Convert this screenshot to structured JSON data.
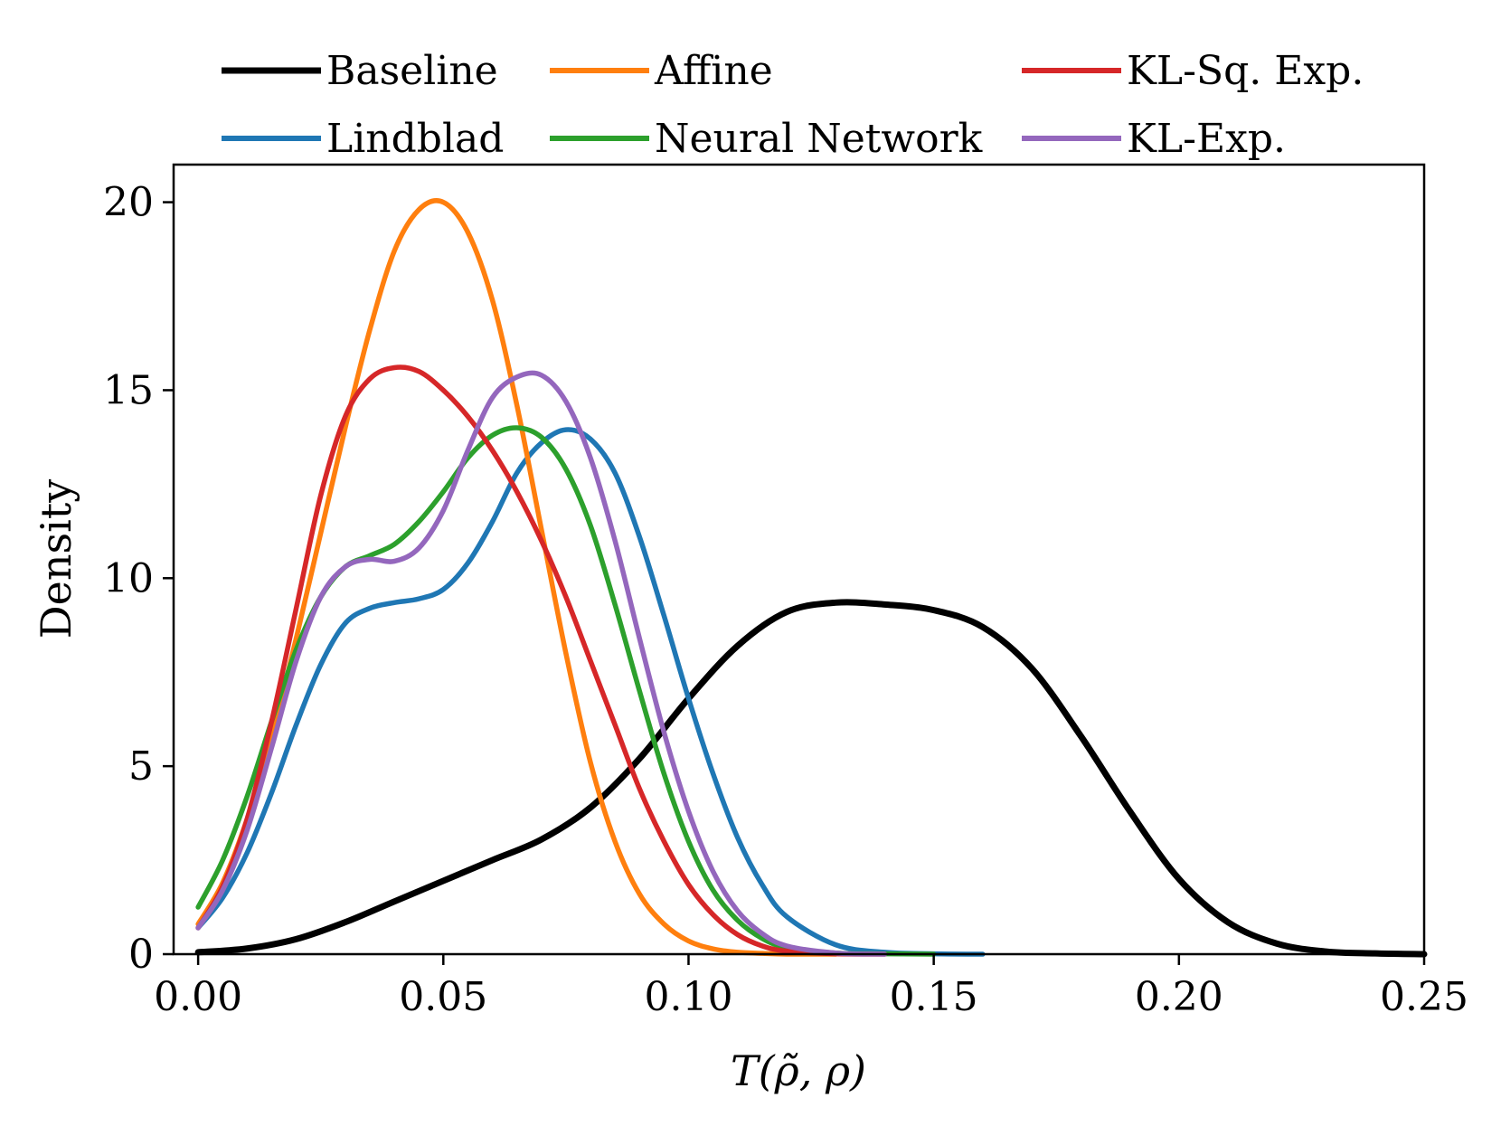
{
  "chart_data": {
    "type": "line",
    "title": "",
    "xlabel": "T(ρ̃, ρ)",
    "ylabel": "Density",
    "xlim": [
      -0.005,
      0.25
    ],
    "ylim": [
      0,
      21
    ],
    "xticks": [
      0.0,
      0.05,
      0.1,
      0.15,
      0.2,
      0.25
    ],
    "xtick_labels": [
      "0.00",
      "0.05",
      "0.10",
      "0.15",
      "0.20",
      "0.25"
    ],
    "yticks": [
      0,
      5,
      10,
      15,
      20
    ],
    "ytick_labels": [
      "0",
      "5",
      "10",
      "15",
      "20"
    ],
    "grid": false,
    "legend_position": "top (above plot, 3 columns)",
    "series": [
      {
        "name": "Baseline",
        "color": "#000000",
        "x": [
          0.0,
          0.01,
          0.02,
          0.03,
          0.04,
          0.05,
          0.06,
          0.07,
          0.08,
          0.09,
          0.1,
          0.11,
          0.12,
          0.13,
          0.14,
          0.15,
          0.16,
          0.17,
          0.18,
          0.19,
          0.2,
          0.21,
          0.22,
          0.23,
          0.24,
          0.25
        ],
        "y": [
          0.05,
          0.15,
          0.4,
          0.85,
          1.4,
          1.95,
          2.5,
          3.05,
          3.9,
          5.2,
          6.8,
          8.2,
          9.1,
          9.35,
          9.3,
          9.15,
          8.7,
          7.6,
          5.8,
          3.8,
          2.0,
          0.85,
          0.28,
          0.07,
          0.02,
          0.0
        ]
      },
      {
        "name": "Lindblad",
        "color": "#1f77b4",
        "x": [
          0.0,
          0.005,
          0.01,
          0.015,
          0.02,
          0.025,
          0.03,
          0.035,
          0.04,
          0.045,
          0.05,
          0.055,
          0.06,
          0.065,
          0.07,
          0.075,
          0.08,
          0.085,
          0.09,
          0.095,
          0.1,
          0.105,
          0.11,
          0.115,
          0.12,
          0.13,
          0.14,
          0.15,
          0.16
        ],
        "y": [
          0.7,
          1.5,
          2.7,
          4.3,
          6.1,
          7.7,
          8.8,
          9.2,
          9.35,
          9.45,
          9.7,
          10.4,
          11.5,
          12.8,
          13.6,
          13.95,
          13.7,
          12.8,
          11.1,
          9.0,
          6.8,
          4.8,
          3.1,
          1.85,
          1.0,
          0.25,
          0.05,
          0.01,
          0.0
        ]
      },
      {
        "name": "Affine",
        "color": "#ff7f0e",
        "x": [
          0.0,
          0.005,
          0.01,
          0.015,
          0.02,
          0.025,
          0.03,
          0.035,
          0.04,
          0.045,
          0.05,
          0.055,
          0.06,
          0.065,
          0.07,
          0.075,
          0.08,
          0.085,
          0.09,
          0.095,
          0.1,
          0.105,
          0.11,
          0.115,
          0.12,
          0.13
        ],
        "y": [
          0.8,
          1.9,
          3.6,
          5.8,
          8.4,
          11.2,
          14.0,
          16.6,
          18.7,
          19.8,
          20.0,
          19.2,
          17.4,
          14.6,
          11.3,
          8.0,
          5.1,
          3.0,
          1.6,
          0.8,
          0.35,
          0.14,
          0.05,
          0.02,
          0.0,
          0.0
        ]
      },
      {
        "name": "Neural Network",
        "color": "#2ca02c",
        "x": [
          0.0,
          0.005,
          0.01,
          0.015,
          0.02,
          0.025,
          0.03,
          0.035,
          0.04,
          0.045,
          0.05,
          0.055,
          0.06,
          0.065,
          0.07,
          0.075,
          0.08,
          0.085,
          0.09,
          0.095,
          0.1,
          0.105,
          0.11,
          0.115,
          0.12,
          0.13,
          0.14,
          0.15
        ],
        "y": [
          1.25,
          2.5,
          4.2,
          6.2,
          8.1,
          9.5,
          10.3,
          10.6,
          10.9,
          11.5,
          12.3,
          13.2,
          13.8,
          14.0,
          13.75,
          12.9,
          11.4,
          9.3,
          7.0,
          4.8,
          3.0,
          1.7,
          0.9,
          0.42,
          0.18,
          0.03,
          0.01,
          0.0
        ]
      },
      {
        "name": "KL-Sq. Exp.",
        "color": "#d62728",
        "x": [
          0.0,
          0.005,
          0.01,
          0.015,
          0.02,
          0.025,
          0.03,
          0.035,
          0.04,
          0.045,
          0.05,
          0.055,
          0.06,
          0.065,
          0.07,
          0.075,
          0.08,
          0.085,
          0.09,
          0.095,
          0.1,
          0.105,
          0.11,
          0.115,
          0.12,
          0.13,
          0.14
        ],
        "y": [
          0.7,
          1.8,
          3.6,
          6.2,
          9.2,
          12.2,
          14.3,
          15.3,
          15.6,
          15.5,
          15.0,
          14.3,
          13.4,
          12.3,
          11.0,
          9.5,
          7.8,
          6.1,
          4.4,
          3.0,
          1.85,
          1.05,
          0.52,
          0.22,
          0.08,
          0.01,
          0.0
        ]
      },
      {
        "name": "KL-Exp.",
        "color": "#9467bd",
        "x": [
          0.0,
          0.005,
          0.01,
          0.015,
          0.02,
          0.025,
          0.03,
          0.035,
          0.04,
          0.045,
          0.05,
          0.055,
          0.06,
          0.065,
          0.07,
          0.075,
          0.08,
          0.085,
          0.09,
          0.095,
          0.1,
          0.105,
          0.11,
          0.115,
          0.12,
          0.13,
          0.14
        ],
        "y": [
          0.7,
          1.7,
          3.3,
          5.5,
          7.8,
          9.5,
          10.3,
          10.5,
          10.45,
          10.8,
          11.8,
          13.4,
          14.8,
          15.35,
          15.4,
          14.7,
          13.2,
          11.0,
          8.4,
          5.9,
          3.8,
          2.2,
          1.15,
          0.55,
          0.22,
          0.03,
          0.0
        ]
      }
    ]
  }
}
